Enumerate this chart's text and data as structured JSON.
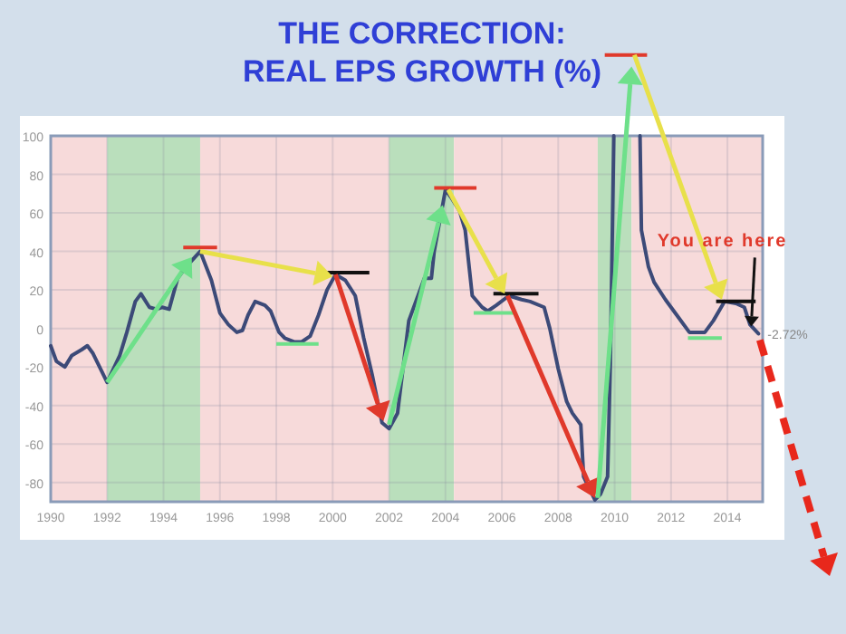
{
  "chart_data": {
    "type": "line",
    "title": "THE CORRECTION:",
    "subtitle": "REAL EPS GROWTH (%)",
    "x": [
      1990,
      1990.2,
      1990.5,
      1990.75,
      1991.1,
      1991.3,
      1991.5,
      1992,
      1992.45,
      1992.7,
      1993,
      1993.2,
      1993.5,
      1993.75,
      1993.95,
      1994.2,
      1994.5,
      1994.8,
      1995.3,
      1995.7,
      1996,
      1996.3,
      1996.6,
      1996.8,
      1997,
      1997.25,
      1997.6,
      1997.8,
      1998.1,
      1998.3,
      1998.65,
      1998.9,
      1999.2,
      1999.5,
      1999.8,
      2000.1,
      2000.45,
      2000.8,
      2001.1,
      2001.4,
      2001.75,
      2002,
      2002.3,
      2002.7,
      2002.8,
      2003.25,
      2003.5,
      2003.6,
      2004,
      2004.2,
      2004.5,
      2004.7,
      2004.95,
      2005.3,
      2005.5,
      2005.8,
      2006.25,
      2006.7,
      2007,
      2007.5,
      2007.7,
      2008,
      2008.3,
      2008.5,
      2008.8,
      2008.9,
      2009.3,
      2009.5,
      2009.75,
      2009.85,
      2009.97,
      2010.4,
      2010.9,
      2010.95,
      2011.2,
      2011.4,
      2011.8,
      2012.2,
      2012.65,
      2013.2,
      2013.5,
      2013.9,
      2014.3,
      2014.6,
      2014.8,
      2015.1
    ],
    "series": [
      {
        "color": "#3c4a78",
        "values": [
          -9,
          -17,
          -20,
          -14,
          -11,
          -9,
          -13,
          -28,
          -14,
          -2,
          14,
          18,
          11,
          10,
          11,
          10,
          26,
          32,
          40,
          25,
          8,
          2,
          -2,
          -1,
          7,
          14,
          12,
          9,
          -2,
          -5,
          -7,
          -7,
          -4,
          7,
          20,
          28,
          25,
          17,
          -5,
          -24,
          -49,
          -52,
          -44,
          4,
          8,
          26,
          26,
          40,
          72,
          68,
          61,
          51,
          17,
          11,
          9,
          12,
          17,
          15,
          14,
          11,
          0,
          -21,
          -38,
          -44,
          -50,
          -77,
          -89,
          -86,
          -77,
          -17,
          100,
          null,
          100,
          51,
          32,
          24,
          15,
          7,
          -2,
          -2,
          4,
          14,
          13,
          11,
          2,
          -2.72
        ]
      }
    ],
    "xlim": [
      1990,
      2015.25
    ],
    "ylim": [
      -90,
      100
    ],
    "xticks": [
      1990,
      1992,
      1994,
      1996,
      1998,
      2000,
      2002,
      2004,
      2006,
      2008,
      2010,
      2012,
      2014
    ],
    "yticks": [
      -80,
      -60,
      -40,
      -20,
      0,
      20,
      40,
      60,
      80,
      100
    ],
    "grid": true,
    "marker": "none",
    "line_style": "solid",
    "bands": [
      {
        "axis": "x",
        "from": 1990,
        "to": 1992,
        "color": "#f7dada"
      },
      {
        "axis": "x",
        "from": 1992,
        "to": 1995.3,
        "color": "#badfbc"
      },
      {
        "axis": "x",
        "from": 1995.3,
        "to": 2002,
        "color": "#f7dada"
      },
      {
        "axis": "x",
        "from": 2002,
        "to": 2004.3,
        "color": "#badfbc"
      },
      {
        "axis": "x",
        "from": 2004.3,
        "to": 2009.4,
        "color": "#f7dada"
      },
      {
        "axis": "x",
        "from": 2009.4,
        "to": 2010.6,
        "color": "#badfbc"
      },
      {
        "axis": "x",
        "from": 2010.6,
        "to": 2015.25,
        "color": "#f7dada"
      }
    ],
    "annotations": [
      "You are here",
      {
        "text": "-2.72%",
        "x": 2015.1,
        "y": -2.72
      }
    ]
  }
}
